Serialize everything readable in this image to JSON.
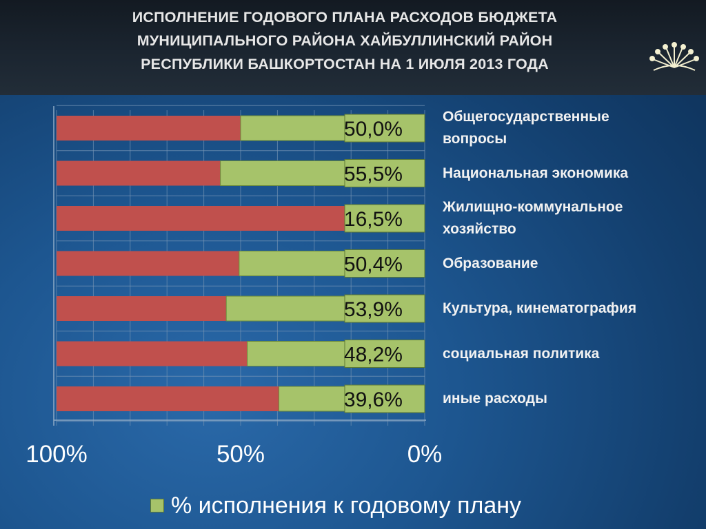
{
  "title": "ИСПОЛНЕНИЕ ГОДОВОГО ПЛАНА РАСХОДОВ БЮДЖЕТА МУНИЦИПАЛЬНОГО РАЙОНА ХАЙБУЛЛИНСКИЙ РАЙОН РЕСПУБЛИКИ БАШКОРТОСТАН НА 1 ИЮЛЯ 2013 ГОДА",
  "title_lines": [
    "ИСПОЛНЕНИЕ ГОДОВОГО ПЛАНА РАСХОДОВ БЮДЖЕТА",
    "МУНИЦИПАЛЬНОГО РАЙОНА ХАЙБУЛЛИНСКИЙ РАЙОН",
    "РЕСПУБЛИКИ БАШКОРТОСТАН НА 1 ИЮЛЯ 2013 ГОДА"
  ],
  "logo_icon": "bashkortostan-kurai-flower-icon",
  "colors": {
    "executed": "#a6c36a",
    "remaining": "#c0504d",
    "label_box": "#a6c36a"
  },
  "chart_data": {
    "type": "bar",
    "orientation": "horizontal",
    "stacked": true,
    "x_reversed": true,
    "xlim": [
      0,
      100
    ],
    "xticks": [
      "100%",
      "50%",
      "0%"
    ],
    "categories": [
      "Общегосударственные вопросы",
      "Национальная экономика",
      "Жилищно-коммунальное хозяйство",
      "Образование",
      "Культура, кинематография",
      "социальная политика",
      "иные расходы"
    ],
    "category_lines": [
      [
        "Общегосударственные",
        "вопросы"
      ],
      [
        "Национальная экономика"
      ],
      [
        "Жилищно-коммунальное",
        "хозяйство"
      ],
      [
        "Образование"
      ],
      [
        "Культура, кинематография"
      ],
      [
        "социальная политика"
      ],
      [
        "иные расходы"
      ]
    ],
    "series": [
      {
        "name": "% исполнения к годовому плану",
        "values": [
          50.0,
          55.5,
          16.5,
          50.4,
          53.9,
          48.2,
          39.6
        ]
      }
    ],
    "value_labels": [
      "50,0%",
      "55,5%",
      "16,5%",
      "50,4%",
      "53,9%",
      "48,2%",
      "39,6%"
    ],
    "legend": {
      "label": "% исполнения к годовому плану",
      "position": "bottom"
    },
    "grid": true
  }
}
